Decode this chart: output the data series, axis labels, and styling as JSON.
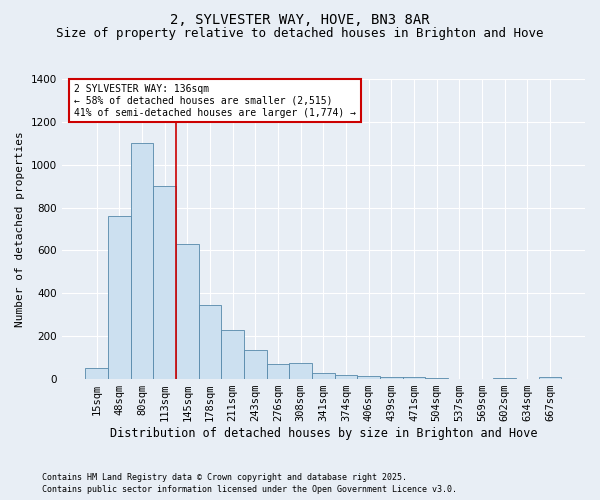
{
  "title": "2, SYLVESTER WAY, HOVE, BN3 8AR",
  "subtitle": "Size of property relative to detached houses in Brighton and Hove",
  "xlabel": "Distribution of detached houses by size in Brighton and Hove",
  "ylabel": "Number of detached properties",
  "footnote1": "Contains HM Land Registry data © Crown copyright and database right 2025.",
  "footnote2": "Contains public sector information licensed under the Open Government Licence v3.0.",
  "categories": [
    "15sqm",
    "48sqm",
    "80sqm",
    "113sqm",
    "145sqm",
    "178sqm",
    "211sqm",
    "243sqm",
    "276sqm",
    "308sqm",
    "341sqm",
    "374sqm",
    "406sqm",
    "439sqm",
    "471sqm",
    "504sqm",
    "537sqm",
    "569sqm",
    "602sqm",
    "634sqm",
    "667sqm"
  ],
  "values": [
    50,
    760,
    1100,
    900,
    630,
    345,
    230,
    135,
    70,
    75,
    30,
    20,
    15,
    10,
    10,
    5,
    1,
    1,
    5,
    1,
    10
  ],
  "bar_color": "#cce0f0",
  "bar_edge_color": "#5588aa",
  "vline_x": 3.5,
  "vline_color": "#cc0000",
  "annotation_text": "2 SYLVESTER WAY: 136sqm\n← 58% of detached houses are smaller (2,515)\n41% of semi-detached houses are larger (1,774) →",
  "annotation_box_color": "#cc0000",
  "ylim": [
    0,
    1400
  ],
  "yticks": [
    0,
    200,
    400,
    600,
    800,
    1000,
    1200,
    1400
  ],
  "background_color": "#e8eef5",
  "plot_background": "#e8eef5",
  "grid_color": "#ffffff",
  "title_fontsize": 10,
  "subtitle_fontsize": 9,
  "xlabel_fontsize": 8.5,
  "ylabel_fontsize": 8,
  "tick_fontsize": 7.5,
  "annotation_fontsize": 7,
  "footnote_fontsize": 6
}
